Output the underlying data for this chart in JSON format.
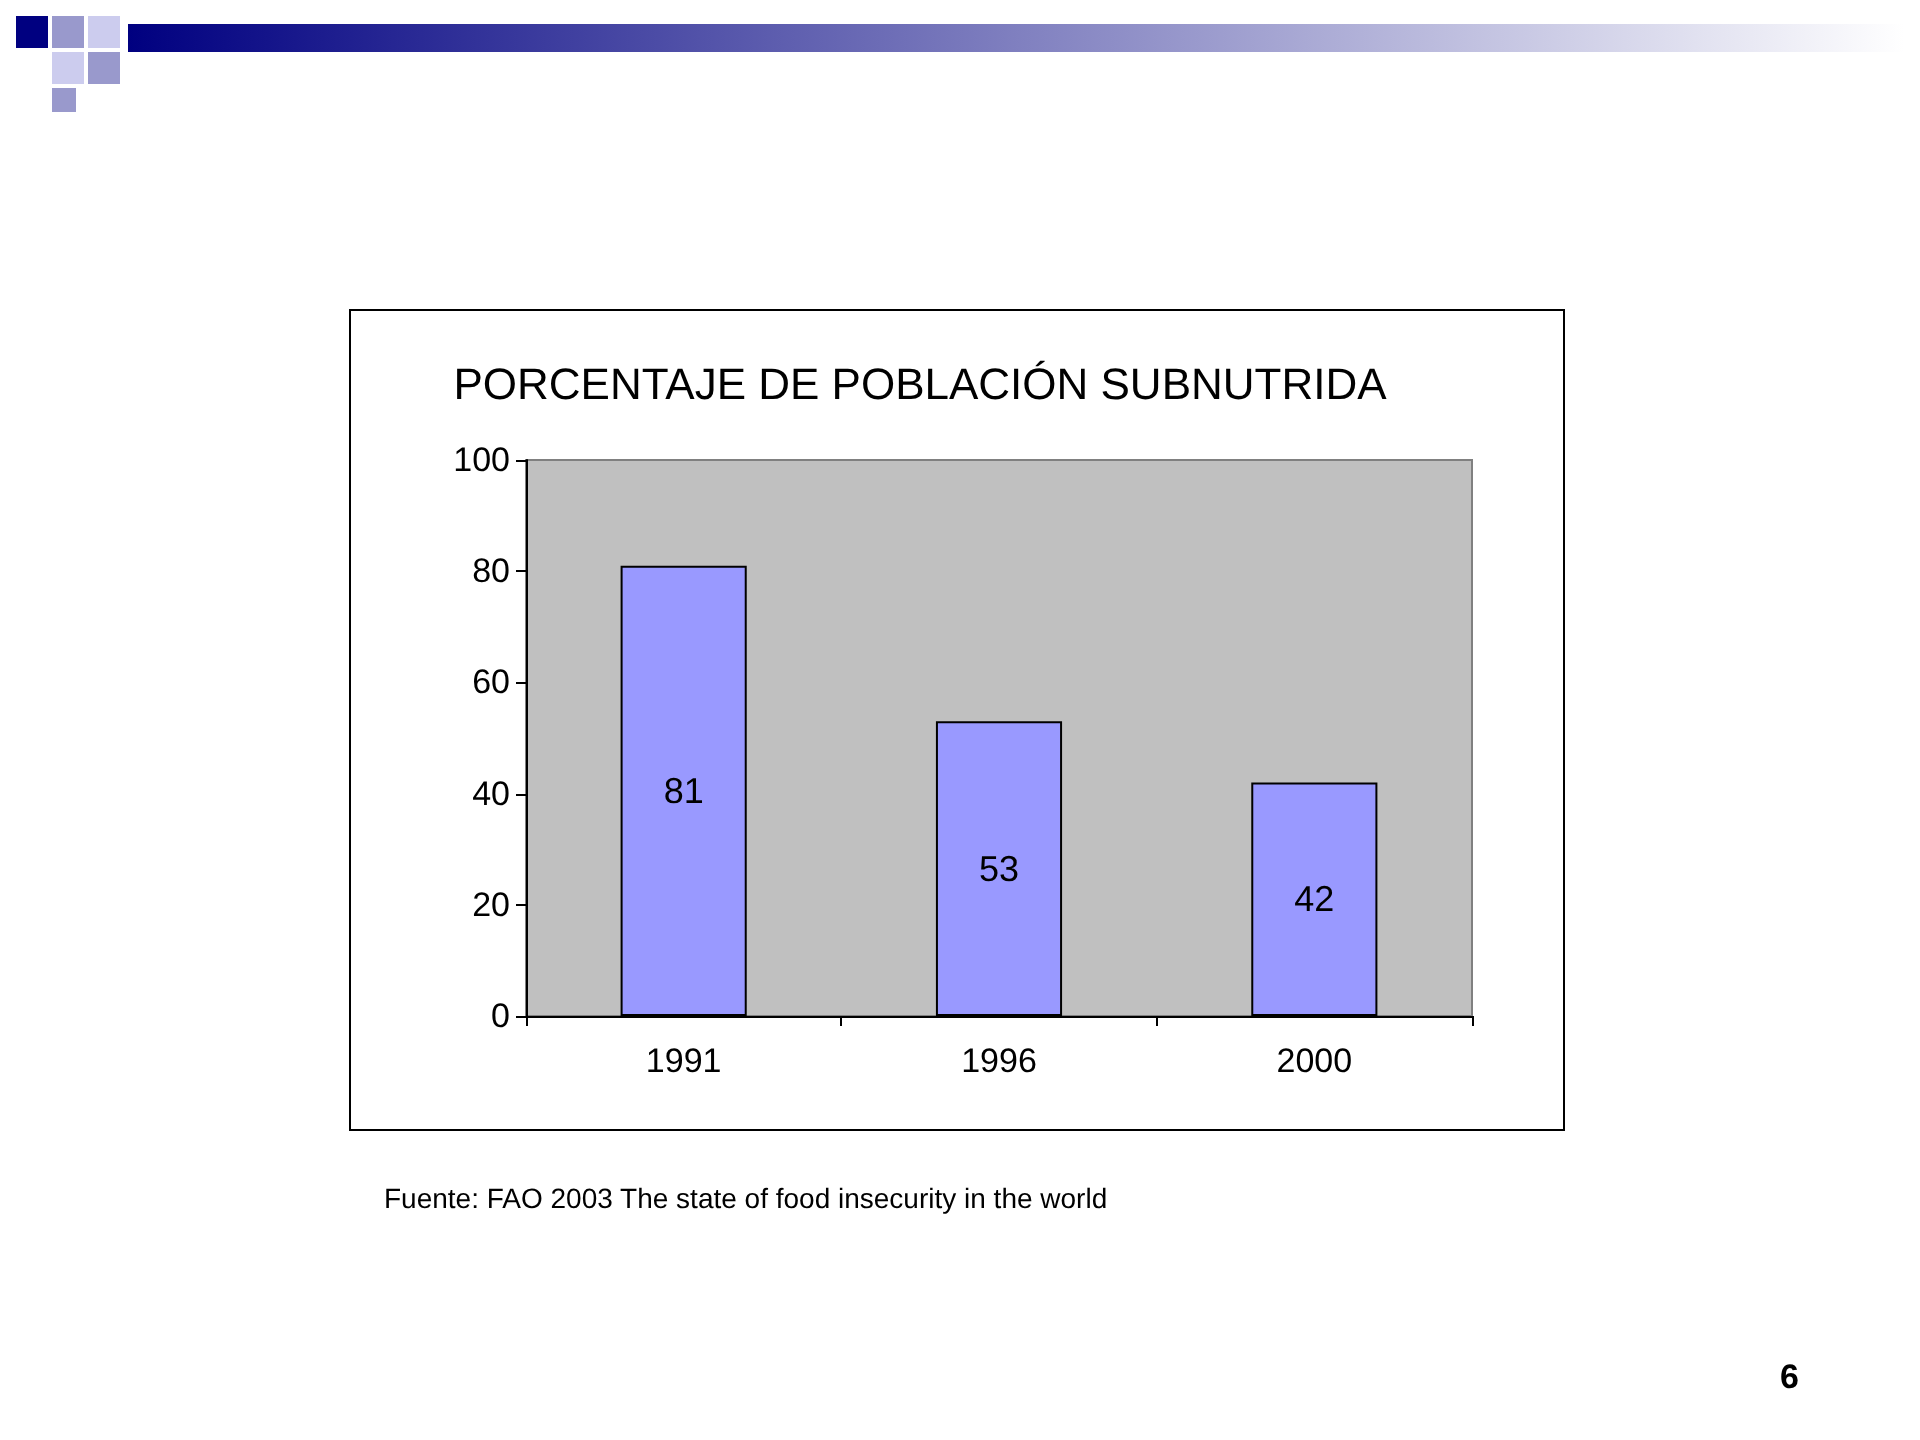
{
  "chart_data": {
    "type": "bar",
    "title": "PORCENTAJE DE POBLACIÓN SUBNUTRIDA",
    "categories": [
      "1991",
      "1996",
      "2000"
    ],
    "values": [
      81,
      53,
      42
    ],
    "color": "#9999ff",
    "ylim": [
      0,
      100
    ],
    "yticks": [
      0,
      20,
      40,
      60,
      80,
      100
    ],
    "data_labels": true,
    "annotations": [
      "Fuente: FAO 2003 The state of food insecurity in the world",
      "6"
    ]
  }
}
